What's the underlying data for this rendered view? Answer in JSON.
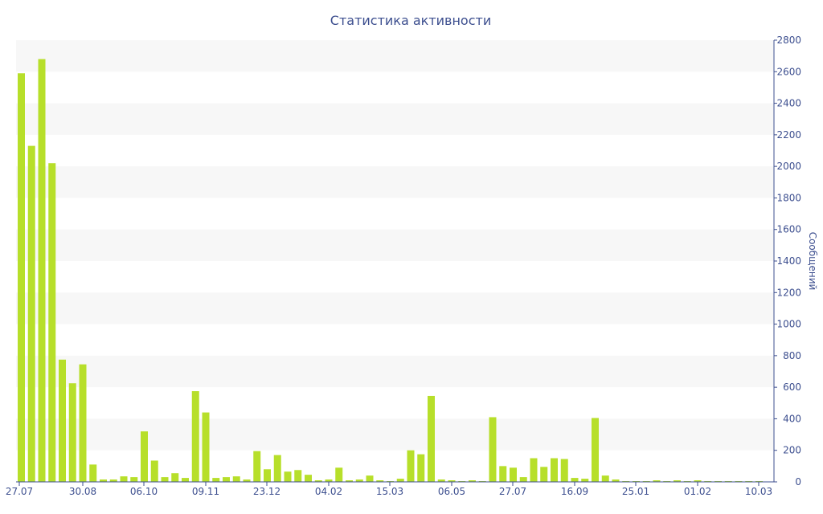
{
  "chart_data": {
    "type": "bar",
    "title": "Статистика активности",
    "xlabel": "",
    "ylabel": "Сообщений",
    "y_axis_side": "right",
    "ylim": [
      0,
      2800
    ],
    "y_ticks": [
      0,
      200,
      400,
      600,
      800,
      1000,
      1200,
      1400,
      1600,
      1800,
      2000,
      2200,
      2400,
      2600,
      2800
    ],
    "x_tick_labels": [
      "27.07",
      "30.08",
      "06.10",
      "09.11",
      "23.12",
      "04.02",
      "15.03",
      "06.05",
      "27.07",
      "16.09",
      "25.01",
      "01.02",
      "10.03"
    ],
    "grid": "alternating horizontal bands",
    "bar_color": "#b7df2a",
    "values": [
      2590,
      2130,
      2680,
      2020,
      775,
      625,
      745,
      110,
      15,
      15,
      35,
      30,
      320,
      135,
      30,
      55,
      25,
      575,
      440,
      25,
      30,
      35,
      15,
      195,
      80,
      170,
      65,
      75,
      45,
      10,
      15,
      90,
      10,
      15,
      40,
      10,
      5,
      20,
      200,
      175,
      545,
      15,
      10,
      5,
      10,
      5,
      410,
      100,
      90,
      30,
      150,
      95,
      150,
      145,
      25,
      20,
      405,
      40,
      15,
      5,
      5,
      5,
      10,
      5,
      10,
      5,
      10,
      5,
      5,
      5,
      5,
      5,
      5
    ]
  }
}
